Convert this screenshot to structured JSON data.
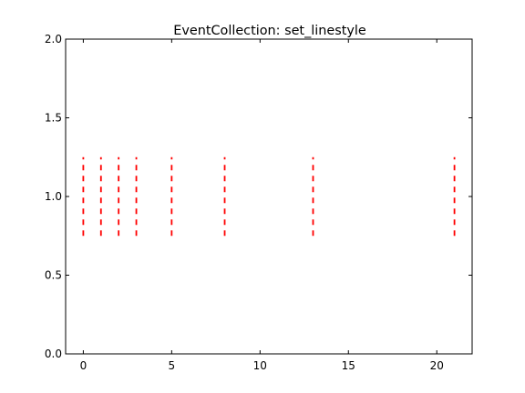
{
  "chart_data": {
    "type": "eventplot",
    "title": "EventCollection: set_linestyle",
    "xlabel": "",
    "ylabel": "",
    "xlim": [
      -1,
      22
    ],
    "ylim": [
      0,
      2
    ],
    "xticks": [
      0,
      5,
      10,
      15,
      20
    ],
    "xtick_labels": [
      "0",
      "5",
      "10",
      "15",
      "20"
    ],
    "yticks": [
      0,
      0.5,
      1,
      1.5,
      2
    ],
    "ytick_labels": [
      "0.0",
      "0.5",
      "1.0",
      "1.5",
      "2.0"
    ],
    "grid": false,
    "series": [
      {
        "positions": [
          0,
          1,
          2,
          3,
          5,
          8,
          13,
          21
        ],
        "lineoffset": 1.0,
        "linelength": 0.5,
        "color": "#ff0000",
        "linestyle": "dashed",
        "orientation": "horizontal"
      }
    ]
  }
}
